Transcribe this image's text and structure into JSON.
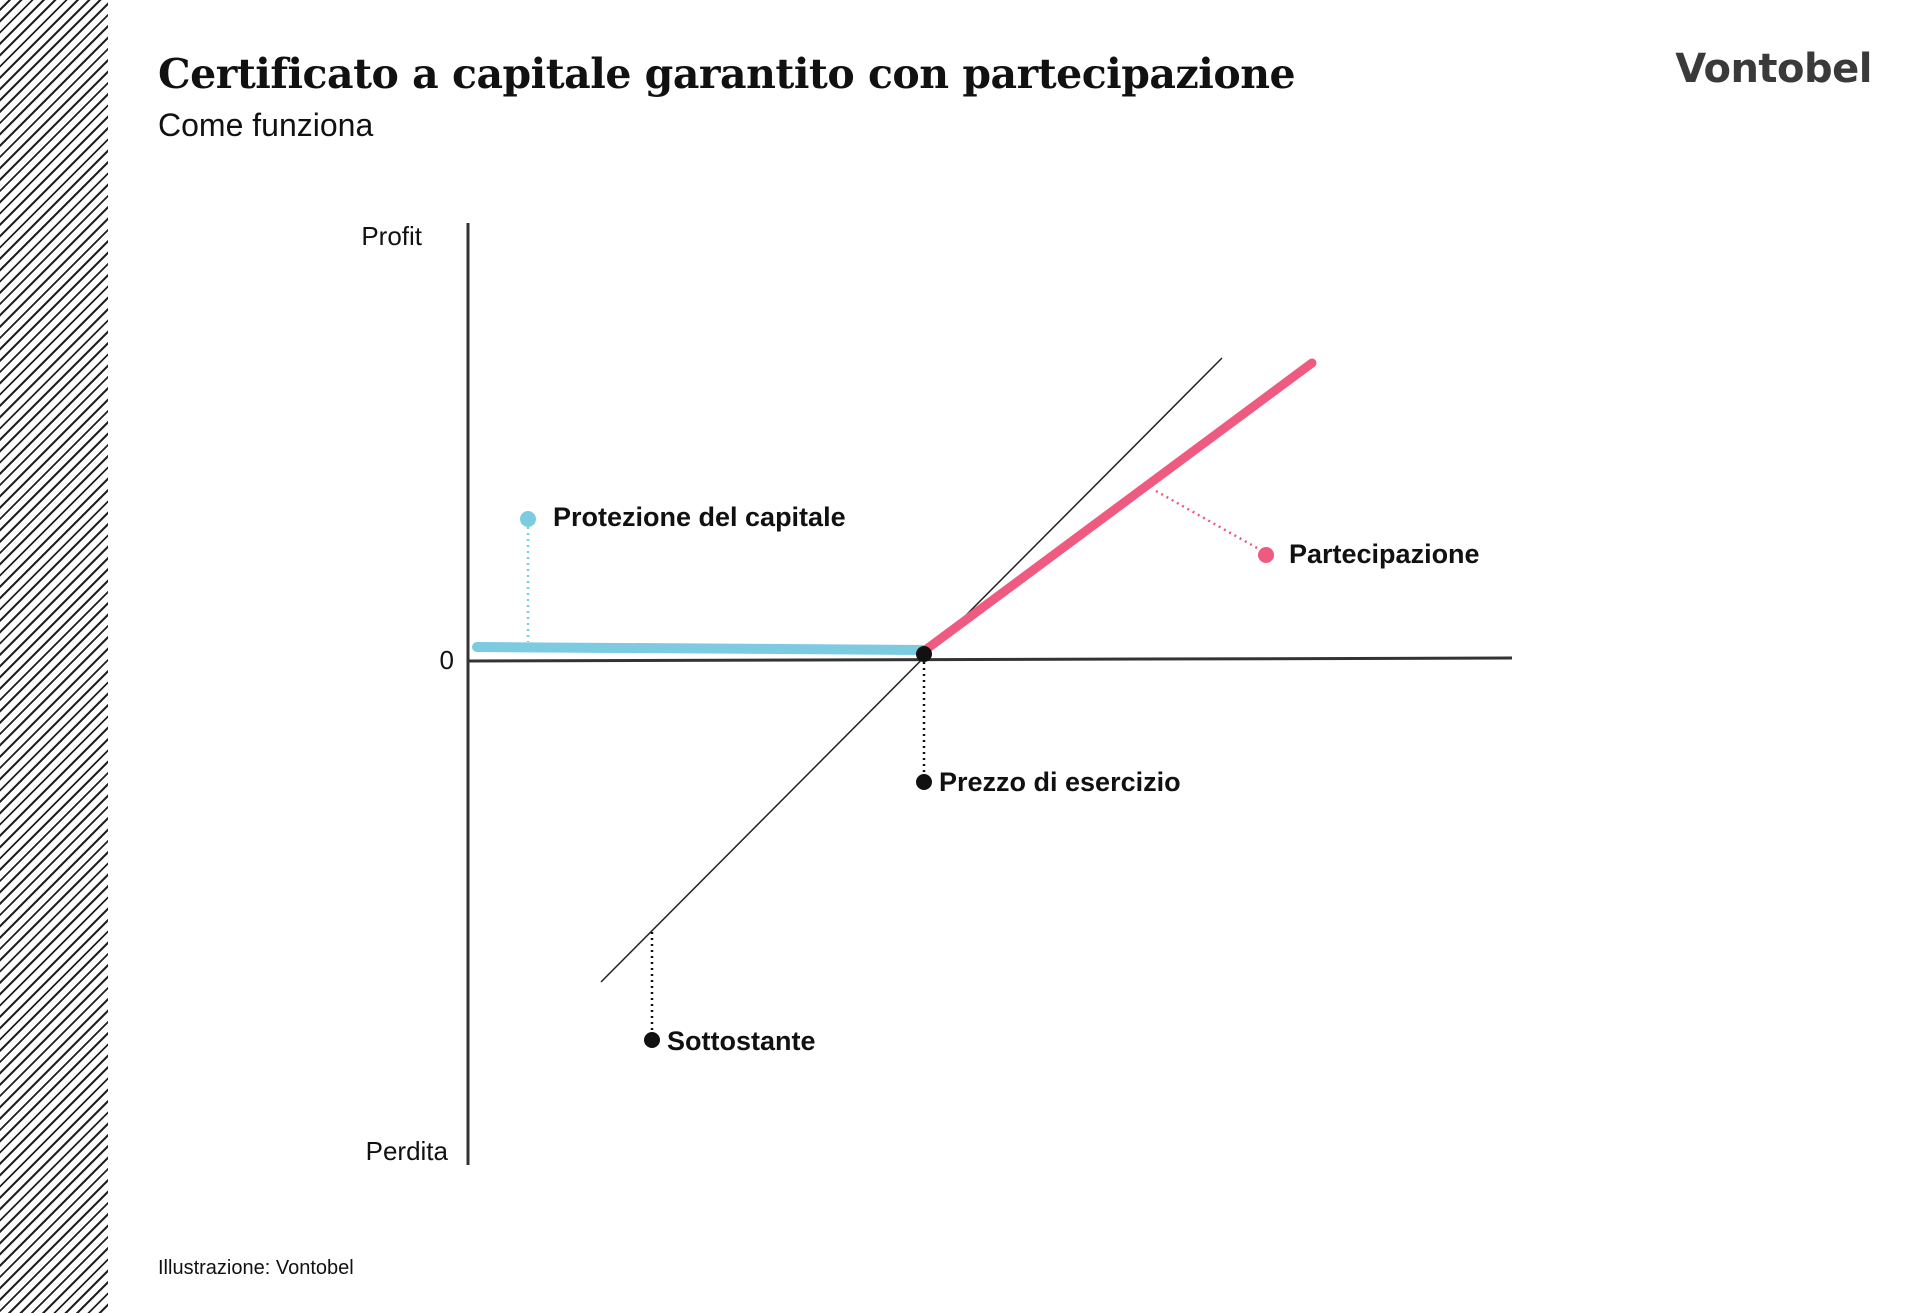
{
  "header": {
    "title": "Certificato a capitale garantito con partecipazione",
    "subtitle": "Come funziona",
    "brand": "Vontobel"
  },
  "diagram": {
    "y_axis_top_label": "Profit",
    "y_axis_bottom_label": "Perdita",
    "zero_label": "0",
    "callouts": {
      "capital_protection": "Protezione del capitale",
      "participation": "Partecipazione",
      "strike_price": "Prezzo di esercizio",
      "underlying": "Sottostante"
    },
    "colors": {
      "protection": "#7ccbe0",
      "participation": "#ef5b80",
      "axis": "#333333"
    }
  },
  "footer": {
    "caption": "Illustrazione: Vontobel"
  }
}
